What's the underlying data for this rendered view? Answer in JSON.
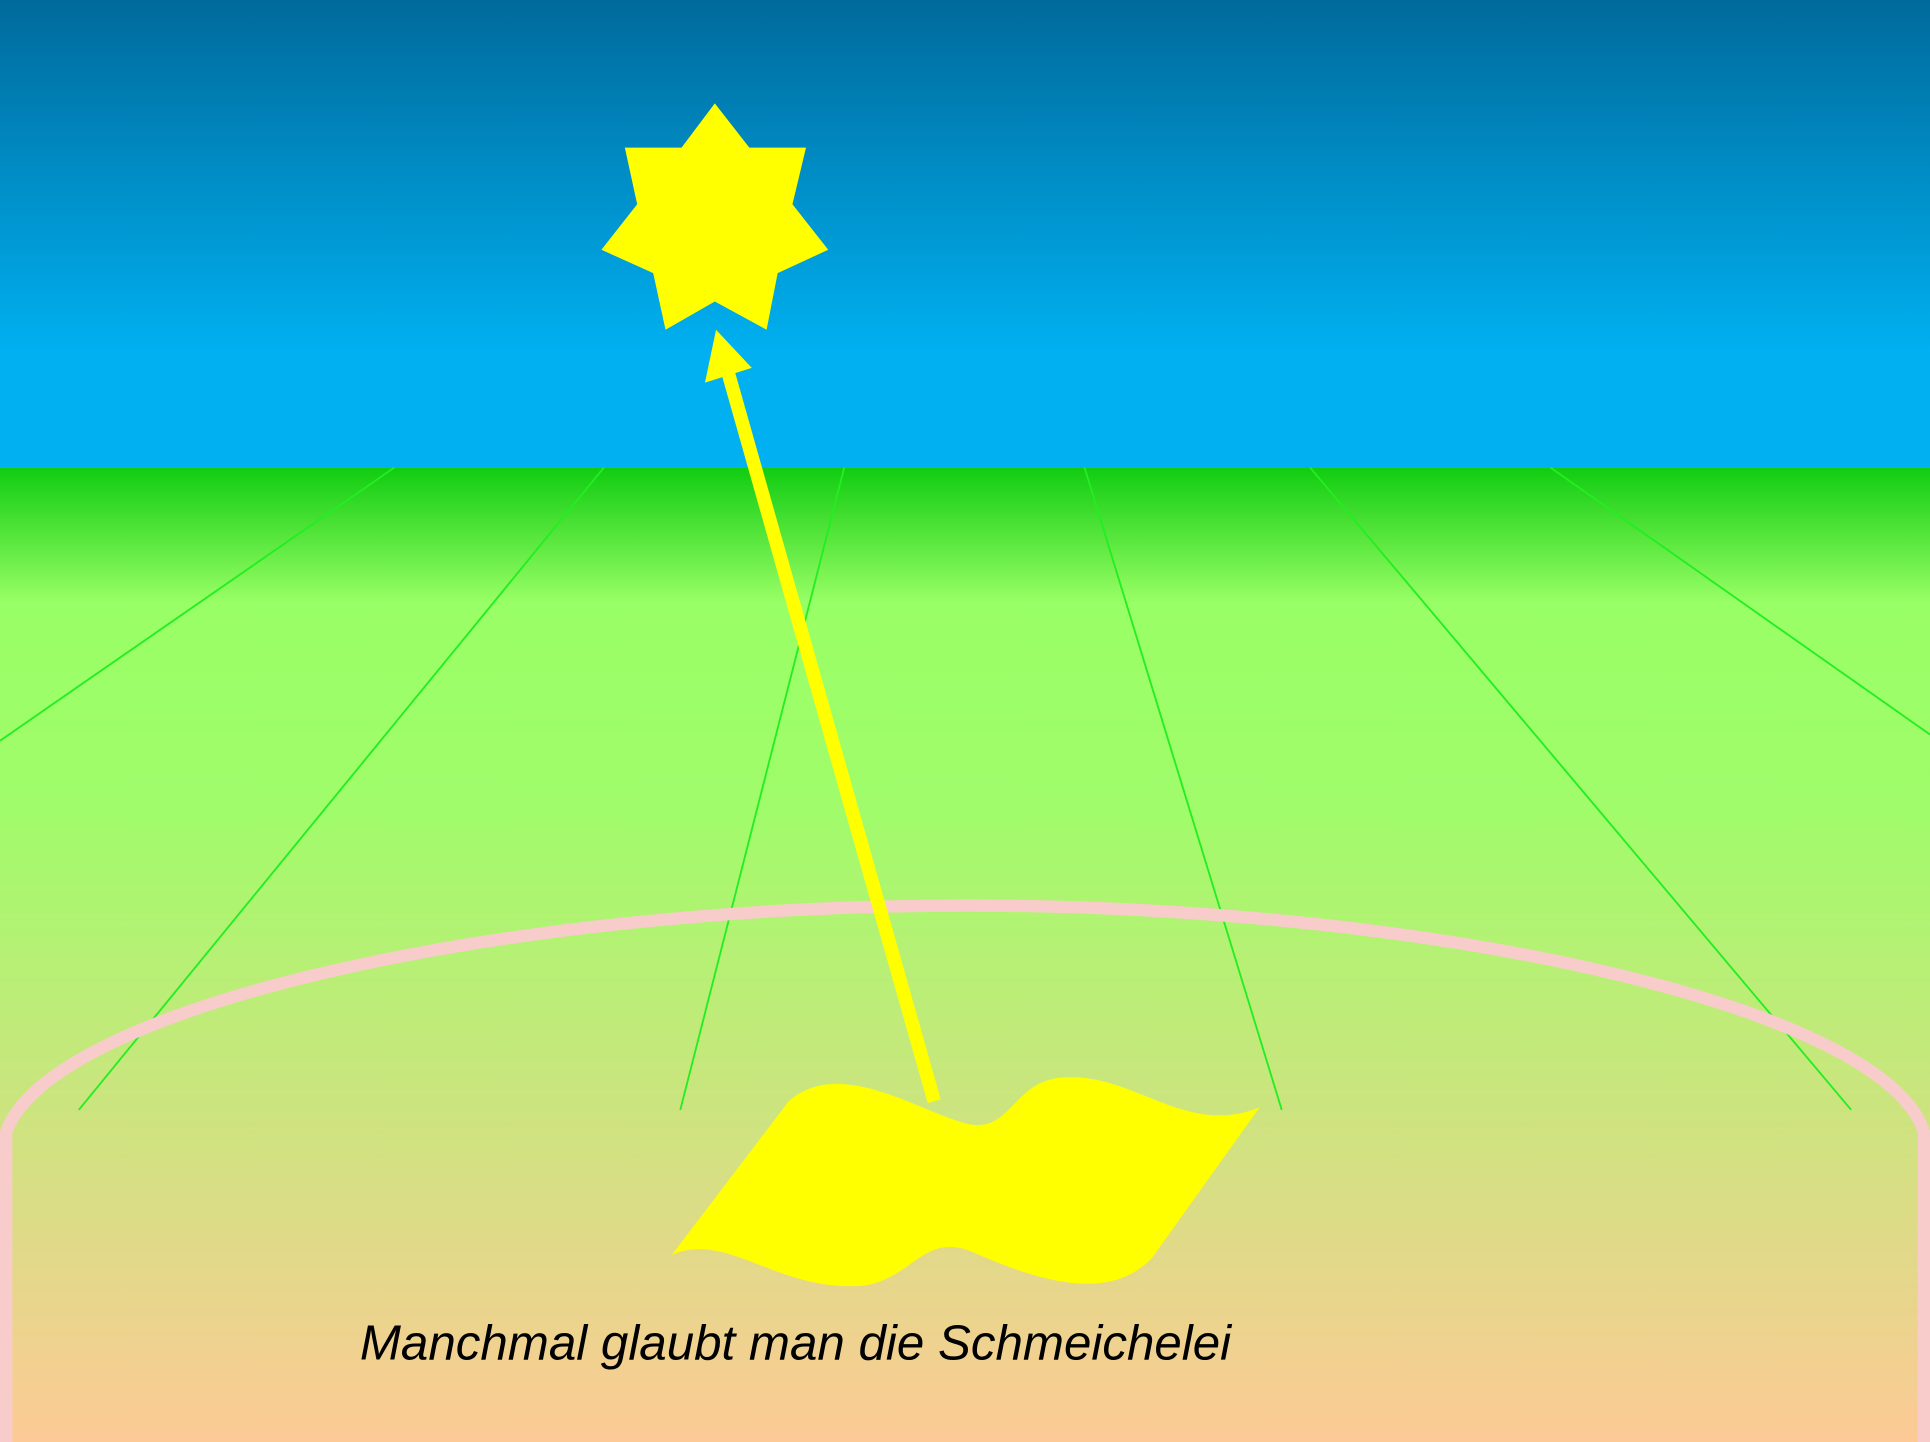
{
  "caption": "Manchmal glaubt man die Schmeichelei"
}
